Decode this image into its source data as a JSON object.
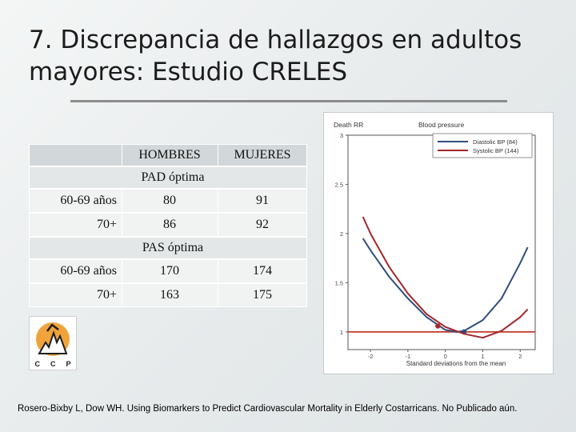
{
  "slide": {
    "title": "7. Discrepancia de hallazgos en adultos mayores: Estudio CRELES",
    "citation": "Rosero-Bixby L, Dow WH. Using Biomarkers to Predict Cardiovascular Mortality in Elderly Costarricans. No Publicado aún."
  },
  "table": {
    "headers": [
      "",
      "HOMBRES",
      "MUJERES"
    ],
    "sections": [
      {
        "label": "PAD óptima",
        "rows": [
          {
            "group": "60-69 años",
            "hombres": "80",
            "mujeres": "91"
          },
          {
            "group": "70+",
            "hombres": "86",
            "mujeres": "92"
          }
        ]
      },
      {
        "label": "PAS óptima",
        "rows": [
          {
            "group": "60-69 años",
            "hombres": "170",
            "mujeres": "174"
          },
          {
            "group": "70+",
            "hombres": "163",
            "mujeres": "175"
          }
        ]
      }
    ]
  },
  "logo": {
    "letters": [
      "C",
      "C",
      "P"
    ]
  },
  "chart_data": {
    "type": "line",
    "ylabel": "Death RR",
    "title": "Blood pressure",
    "xlabel": "Standard deviations from the mean",
    "xlim": [
      -2.6,
      2.4
    ],
    "ylim": [
      0.82,
      3.0
    ],
    "xticks": [
      -2,
      -1,
      0,
      1,
      2
    ],
    "xtick_labels": [
      "-2",
      "-1",
      "0",
      "1",
      "2"
    ],
    "yticks": [
      1,
      1.5,
      2,
      2.5,
      3
    ],
    "ytick_labels": [
      "1",
      "1.5",
      "2",
      "2.5",
      "3"
    ],
    "legend_position": "top-right",
    "reference_line": {
      "y": 1,
      "color": "#c0392b"
    },
    "series": [
      {
        "name": "Diastolic BP (84)",
        "color": "#2e4e7e",
        "x": [
          -2.2,
          -2.0,
          -1.5,
          -1.0,
          -0.5,
          0.0,
          0.3,
          0.5,
          1.0,
          1.5,
          2.0,
          2.2
        ],
        "y": [
          1.95,
          1.83,
          1.56,
          1.34,
          1.15,
          1.02,
          1.0,
          1.01,
          1.12,
          1.34,
          1.7,
          1.86
        ],
        "marker": {
          "x": 0.5,
          "y": 1.0
        }
      },
      {
        "name": "Systolic BP (144)",
        "color": "#a3262a",
        "x": [
          -2.2,
          -2.0,
          -1.5,
          -1.0,
          -0.5,
          0.0,
          0.5,
          1.0,
          1.5,
          2.0,
          2.2
        ],
        "y": [
          2.17,
          2.0,
          1.66,
          1.39,
          1.18,
          1.05,
          0.98,
          0.94,
          1.01,
          1.15,
          1.23
        ],
        "marker": {
          "x": -0.2,
          "y": 1.06
        }
      }
    ]
  }
}
